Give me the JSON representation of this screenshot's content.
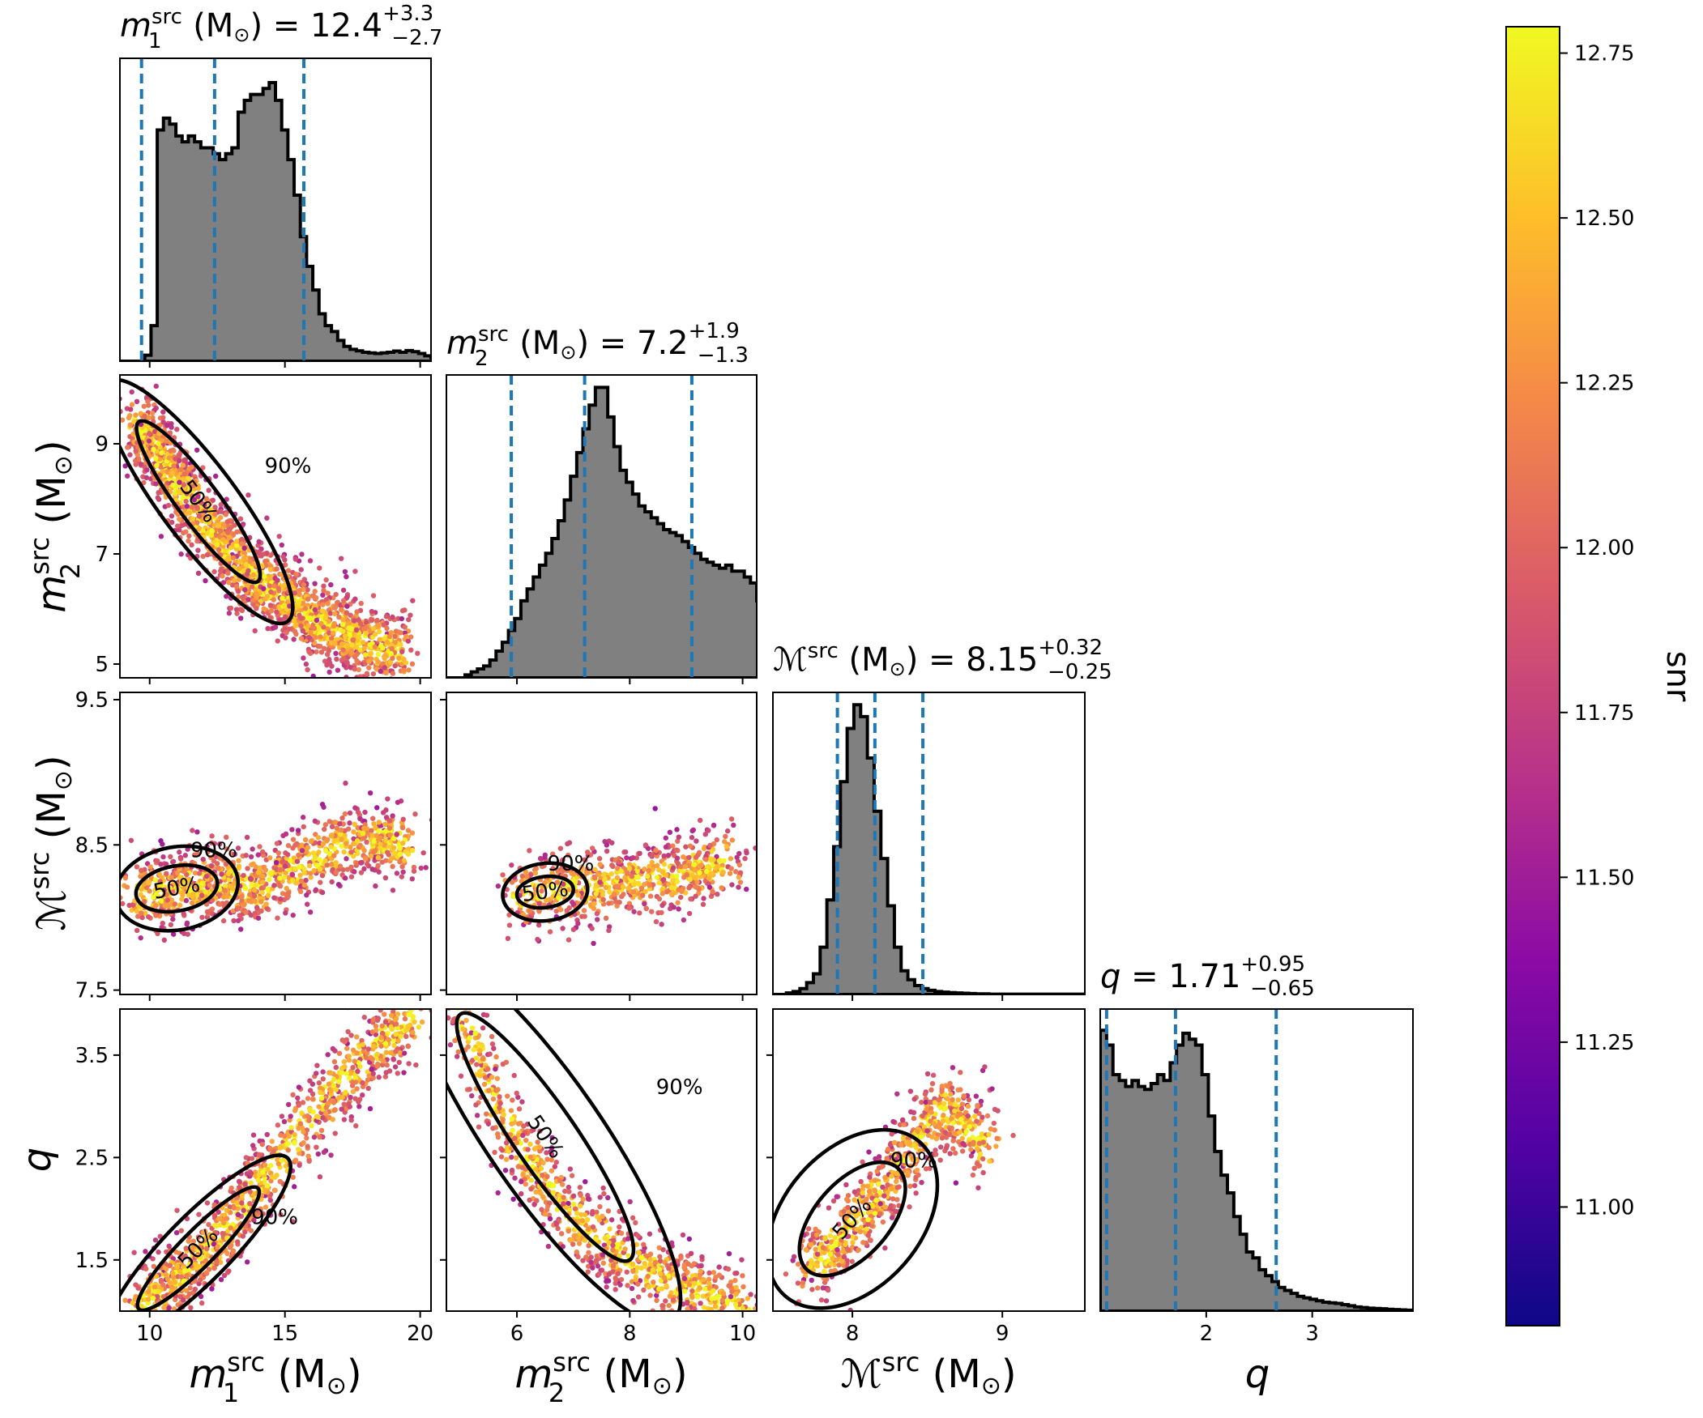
{
  "panel_titles": [
    {
      "id": "m1",
      "base": "m",
      "sub": "1",
      "sup": "src",
      "unit": " (M",
      "unit_end": ")",
      "eq": " = 12.4",
      "plus": "+3.3",
      "minus": "−2.7"
    },
    {
      "id": "m2",
      "base": "m",
      "sub": "2",
      "sup": "src",
      "unit": " (M",
      "unit_end": ")",
      "eq": " = 7.2",
      "plus": "+1.9",
      "minus": "−1.3"
    },
    {
      "id": "mc",
      "base": "ℳ",
      "sub": "",
      "sup": "src",
      "unit": " (M",
      "unit_end": ")",
      "eq": " = 8.15",
      "plus": "+0.32",
      "minus": "−0.25"
    },
    {
      "id": "q",
      "base": "q",
      "sub": "",
      "sup": "",
      "unit": "",
      "unit_end": "",
      "eq": " = 1.71",
      "plus": "+0.95",
      "minus": "−0.65"
    }
  ],
  "axis_labels": {
    "x": [
      {
        "base": "m",
        "sub": "1",
        "sup": "src",
        "unit": " (M",
        "unit_end": ")"
      },
      {
        "base": "m",
        "sub": "2",
        "sup": "src",
        "unit": " (M",
        "unit_end": ")"
      },
      {
        "base": "ℳ",
        "sub": "",
        "sup": "src",
        "unit": " (M",
        "unit_end": ")"
      },
      {
        "base": "q",
        "sub": "",
        "sup": "",
        "unit": "",
        "unit_end": ""
      }
    ],
    "y": [
      {
        "base": "m",
        "sub": "2",
        "sup": "src",
        "unit": " (M",
        "unit_end": ")"
      },
      {
        "base": "ℳ",
        "sub": "",
        "sup": "src",
        "unit": " (M",
        "unit_end": ")"
      },
      {
        "base": "q",
        "sub": "",
        "sup": "",
        "unit": "",
        "unit_end": ""
      }
    ]
  },
  "sun_symbol": "⊙",
  "colorbar": {
    "label": "snr",
    "ticks": [
      "11.00",
      "11.25",
      "11.50",
      "11.75",
      "12.00",
      "12.25",
      "12.50",
      "12.75"
    ],
    "min": 10.82,
    "max": 12.79,
    "colormap": "plasma",
    "colors": [
      "#0d0887",
      "#5302a3",
      "#8b0aa5",
      "#b83289",
      "#db5c68",
      "#f48849",
      "#febd2a",
      "#f0f921"
    ]
  },
  "contour_labels": [
    "50%",
    "90%"
  ],
  "colors": {
    "hist_fill": "#808080",
    "quantile_line": "#1f77b4",
    "contour": "#000000"
  },
  "chart_data": {
    "type": "corner",
    "parameters": [
      {
        "id": "m1",
        "range": [
          8.9,
          20.4
        ],
        "ticks": [
          "10",
          "15",
          "20"
        ],
        "median": 12.4,
        "q_low": 9.7,
        "q_high": 15.7
      },
      {
        "id": "m2",
        "range": [
          4.75,
          10.25
        ],
        "ticks": [
          "5",
          "7",
          "9",
          "6",
          "8",
          "10"
        ],
        "median": 7.2,
        "q_low": 5.9,
        "q_high": 9.1
      },
      {
        "id": "mc",
        "range": [
          7.47,
          9.55
        ],
        "ticks": [
          "7.5",
          "8.5",
          "9.5",
          "8",
          "9"
        ],
        "median": 8.15,
        "q_low": 7.9,
        "q_high": 8.47
      },
      {
        "id": "q",
        "range": [
          1.0,
          3.95
        ],
        "ticks": [
          "1.5",
          "2.5",
          "3.5",
          "2",
          "3"
        ],
        "median": 1.71,
        "q_low": 1.06,
        "q_high": 2.66
      }
    ],
    "histograms": {
      "m1": {
        "start": 8.9,
        "step": 0.23,
        "density": [
          0,
          0,
          0,
          0,
          0.02,
          0.12,
          0.78,
          0.82,
          0.8,
          0.76,
          0.74,
          0.76,
          0.74,
          0.72,
          0.72,
          0.7,
          0.68,
          0.7,
          0.72,
          0.84,
          0.88,
          0.9,
          0.9,
          0.92,
          0.94,
          0.88,
          0.78,
          0.68,
          0.56,
          0.42,
          0.32,
          0.24,
          0.16,
          0.12,
          0.1,
          0.07,
          0.05,
          0.04,
          0.035,
          0.03,
          0.028,
          0.026,
          0.028,
          0.03,
          0.034,
          0.03,
          0.036,
          0.032,
          0.026,
          0.018,
          0.012,
          0.008,
          0.005,
          0.003
        ]
      },
      "m2": {
        "start": 4.75,
        "step": 0.11,
        "density": [
          0,
          0,
          0,
          0.01,
          0.02,
          0.03,
          0.04,
          0.06,
          0.09,
          0.12,
          0.16,
          0.2,
          0.26,
          0.3,
          0.34,
          0.38,
          0.42,
          0.47,
          0.53,
          0.6,
          0.68,
          0.76,
          0.84,
          0.92,
          0.98,
          0.98,
          0.88,
          0.78,
          0.7,
          0.66,
          0.62,
          0.58,
          0.56,
          0.54,
          0.52,
          0.5,
          0.49,
          0.48,
          0.46,
          0.44,
          0.42,
          0.4,
          0.39,
          0.38,
          0.37,
          0.38,
          0.36,
          0.36,
          0.34,
          0.32,
          0.26,
          0.16,
          0.06,
          0.02,
          0.01,
          0,
          0,
          0
        ]
      },
      "mc": {
        "start": 7.47,
        "step": 0.045,
        "density": [
          0,
          0,
          0.005,
          0.01,
          0.02,
          0.04,
          0.07,
          0.16,
          0.32,
          0.5,
          0.72,
          0.9,
          0.98,
          0.94,
          0.8,
          0.62,
          0.46,
          0.3,
          0.16,
          0.08,
          0.05,
          0.03,
          0.02,
          0.014,
          0.01,
          0.008,
          0.006,
          0.005,
          0.004,
          0.003,
          0.002,
          0.002,
          0.001,
          0.001,
          0.001,
          0.001,
          0.001,
          0.001,
          0.001,
          0.001,
          0.001,
          0.001,
          0.001,
          0.001,
          0.001,
          0.001
        ]
      },
      "q": {
        "start": 1.0,
        "step": 0.06,
        "density": [
          0.95,
          0.9,
          0.8,
          0.78,
          0.76,
          0.78,
          0.76,
          0.75,
          0.77,
          0.8,
          0.78,
          0.84,
          0.9,
          0.94,
          0.92,
          0.9,
          0.8,
          0.66,
          0.54,
          0.46,
          0.4,
          0.32,
          0.26,
          0.2,
          0.18,
          0.14,
          0.12,
          0.1,
          0.08,
          0.07,
          0.06,
          0.05,
          0.045,
          0.04,
          0.035,
          0.03,
          0.028,
          0.026,
          0.022,
          0.018,
          0.014,
          0.012,
          0.01,
          0.009,
          0.008,
          0.006,
          0.005,
          0.004,
          0.003,
          0.002
        ]
      }
    },
    "scatter_samples": {
      "m1_m2": [
        [
          9.6,
          9.4
        ],
        [
          10.2,
          8.9
        ],
        [
          11,
          8.3
        ],
        [
          12,
          7.6
        ],
        [
          13,
          7.0
        ],
        [
          14,
          6.5
        ],
        [
          15,
          6.2
        ],
        [
          16,
          5.8
        ],
        [
          17,
          5.6
        ],
        [
          18,
          5.4
        ],
        [
          19.5,
          5.2
        ]
      ],
      "m1_mc": [
        [
          9.5,
          8.15
        ],
        [
          11,
          8.2
        ],
        [
          12.5,
          8.25
        ],
        [
          14,
          8.2
        ],
        [
          16,
          8.4
        ],
        [
          18,
          8.55
        ],
        [
          19.5,
          8.5
        ]
      ],
      "m2_mc": [
        [
          6,
          8.15
        ],
        [
          7,
          8.2
        ],
        [
          8,
          8.25
        ],
        [
          9,
          8.3
        ],
        [
          9.8,
          8.4
        ]
      ],
      "m1_q": [
        [
          9.6,
          1.02
        ],
        [
          11,
          1.3
        ],
        [
          12.5,
          1.7
        ],
        [
          14,
          2.2
        ],
        [
          16,
          2.9
        ],
        [
          18,
          3.5
        ],
        [
          20,
          3.95
        ]
      ],
      "m2_q": [
        [
          5,
          3.9
        ],
        [
          6,
          2.6
        ],
        [
          7,
          1.9
        ],
        [
          8,
          1.5
        ],
        [
          9,
          1.2
        ],
        [
          10,
          1.02
        ]
      ],
      "mc_q": [
        [
          7.7,
          1.4
        ],
        [
          8,
          1.8
        ],
        [
          8.3,
          2.4
        ],
        [
          8.6,
          3.0
        ],
        [
          8.9,
          2.6
        ]
      ]
    }
  }
}
